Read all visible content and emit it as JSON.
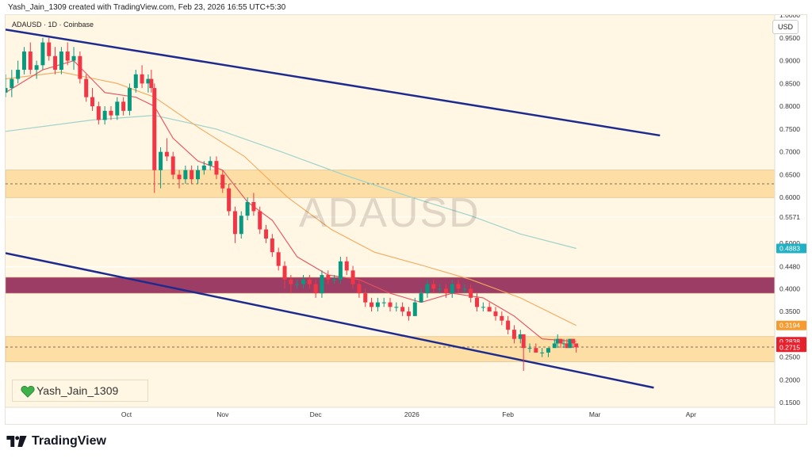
{
  "header": {
    "text": "Yash_Jain_1309 created with TradingView.com, Feb 23, 2026 16:55 UTC+5:30"
  },
  "symbol_title": "ADAUSD · 1D · Coinbase",
  "currency_button": "USD",
  "watermark": "ADAUSD",
  "author": "Yash_Jain_1309",
  "footer": {
    "brand": "TradingView"
  },
  "colors": {
    "background": "#fff6e3",
    "candle_up": "#089981",
    "candle_down": "#f23645",
    "ema_fast": "#e8505b",
    "ema_slow": "#f4a95a",
    "ma_long": "#9ed3cc",
    "channel": "#1d2b8e",
    "zone_light": "#fddfa6",
    "zone_dark": "#9c3d66"
  },
  "chart_data": {
    "type": "candlestick",
    "symbol": "ADAUSD",
    "timeframe": "1D",
    "exchange": "Coinbase",
    "x_range": [
      "2025-08-23",
      "2026-04-28"
    ],
    "y_range": [
      0.14,
      1.0
    ],
    "x_ticks": [
      {
        "label": "Oct",
        "date": "2025-10-01"
      },
      {
        "label": "Nov",
        "date": "2025-11-01"
      },
      {
        "label": "Dec",
        "date": "2025-12-01"
      },
      {
        "label": "2026",
        "date": "2026-01-01"
      },
      {
        "label": "Feb",
        "date": "2026-02-01"
      },
      {
        "label": "Mar",
        "date": "2026-03-01"
      },
      {
        "label": "Apr",
        "date": "2026-04-01"
      }
    ],
    "y_ticks": [
      {
        "label": "1.0000",
        "value": 1.0
      },
      {
        "label": "0.9500",
        "value": 0.95
      },
      {
        "label": "0.9000",
        "value": 0.9
      },
      {
        "label": "0.8500",
        "value": 0.85
      },
      {
        "label": "0.8000",
        "value": 0.8
      },
      {
        "label": "0.7500",
        "value": 0.75
      },
      {
        "label": "0.7000",
        "value": 0.7
      },
      {
        "label": "0.6500",
        "value": 0.65
      },
      {
        "label": "0.6000",
        "value": 0.6
      },
      {
        "label": "0.5571",
        "value": 0.5571
      },
      {
        "label": "0.5000",
        "value": 0.5
      },
      {
        "label": "0.4480",
        "value": 0.448
      },
      {
        "label": "0.4000",
        "value": 0.4
      },
      {
        "label": "0.3500",
        "value": 0.35
      },
      {
        "label": "0.2500",
        "value": 0.25
      },
      {
        "label": "0.2000",
        "value": 0.2
      },
      {
        "label": "0.1500",
        "value": 0.15
      }
    ],
    "price_labels": [
      {
        "label": "0.4883",
        "value": 0.4883,
        "color": "#22b0c4"
      },
      {
        "label": "0.3194",
        "value": 0.3194,
        "color": "#f59b2f"
      },
      {
        "label": "0.2838",
        "value": 0.2838,
        "color": "#e5212e"
      },
      {
        "label": "0.2715",
        "value": 0.2715,
        "color": "#e5212e"
      }
    ],
    "zones": [
      {
        "from": 0.6,
        "to": 0.66,
        "color": "#fddfa6",
        "midline": 0.63
      },
      {
        "from": 0.39,
        "to": 0.425,
        "color": "#9c3d66"
      },
      {
        "from": 0.24,
        "to": 0.295,
        "color": "#fddfa6",
        "midline": 0.272
      }
    ],
    "channel_lines": [
      {
        "from": {
          "date": "2025-08-23",
          "value": 0.968
        },
        "to": {
          "date": "2026-03-22",
          "value": 0.736
        }
      },
      {
        "from": {
          "date": "2025-08-23",
          "value": 0.478
        },
        "to": {
          "date": "2026-03-20",
          "value": 0.183
        }
      }
    ],
    "horizontal_lines": [
      {
        "value": 0.5571,
        "color": "#ffffff"
      },
      {
        "value": 0.448,
        "color": "#ffffff"
      }
    ],
    "candles": [
      {
        "date": "2025-08-23",
        "o": 0.83,
        "h": 0.87,
        "l": 0.82,
        "c": 0.84
      },
      {
        "date": "2025-08-25",
        "o": 0.84,
        "h": 0.88,
        "l": 0.82,
        "c": 0.86
      },
      {
        "date": "2025-08-27",
        "o": 0.86,
        "h": 0.9,
        "l": 0.85,
        "c": 0.88
      },
      {
        "date": "2025-08-29",
        "o": 0.88,
        "h": 0.93,
        "l": 0.87,
        "c": 0.92
      },
      {
        "date": "2025-08-31",
        "o": 0.92,
        "h": 0.94,
        "l": 0.87,
        "c": 0.88
      },
      {
        "date": "2025-09-02",
        "o": 0.88,
        "h": 0.9,
        "l": 0.86,
        "c": 0.89
      },
      {
        "date": "2025-09-04",
        "o": 0.89,
        "h": 0.95,
        "l": 0.88,
        "c": 0.94
      },
      {
        "date": "2025-09-06",
        "o": 0.94,
        "h": 0.95,
        "l": 0.9,
        "c": 0.91
      },
      {
        "date": "2025-09-08",
        "o": 0.91,
        "h": 0.93,
        "l": 0.87,
        "c": 0.88
      },
      {
        "date": "2025-09-10",
        "o": 0.88,
        "h": 0.93,
        "l": 0.87,
        "c": 0.92
      },
      {
        "date": "2025-09-12",
        "o": 0.92,
        "h": 0.94,
        "l": 0.89,
        "c": 0.9
      },
      {
        "date": "2025-09-14",
        "o": 0.9,
        "h": 0.93,
        "l": 0.88,
        "c": 0.91
      },
      {
        "date": "2025-09-16",
        "o": 0.91,
        "h": 0.92,
        "l": 0.85,
        "c": 0.86
      },
      {
        "date": "2025-09-18",
        "o": 0.86,
        "h": 0.87,
        "l": 0.81,
        "c": 0.82
      },
      {
        "date": "2025-09-20",
        "o": 0.82,
        "h": 0.84,
        "l": 0.79,
        "c": 0.8
      },
      {
        "date": "2025-09-22",
        "o": 0.8,
        "h": 0.81,
        "l": 0.76,
        "c": 0.77
      },
      {
        "date": "2025-09-24",
        "o": 0.77,
        "h": 0.8,
        "l": 0.76,
        "c": 0.79
      },
      {
        "date": "2025-09-26",
        "o": 0.79,
        "h": 0.8,
        "l": 0.77,
        "c": 0.78
      },
      {
        "date": "2025-09-28",
        "o": 0.78,
        "h": 0.82,
        "l": 0.77,
        "c": 0.81
      },
      {
        "date": "2025-09-30",
        "o": 0.81,
        "h": 0.82,
        "l": 0.78,
        "c": 0.79
      },
      {
        "date": "2025-10-02",
        "o": 0.79,
        "h": 0.85,
        "l": 0.78,
        "c": 0.84
      },
      {
        "date": "2025-10-04",
        "o": 0.84,
        "h": 0.88,
        "l": 0.83,
        "c": 0.87
      },
      {
        "date": "2025-10-06",
        "o": 0.87,
        "h": 0.89,
        "l": 0.84,
        "c": 0.85
      },
      {
        "date": "2025-10-08",
        "o": 0.85,
        "h": 0.87,
        "l": 0.83,
        "c": 0.86
      },
      {
        "date": "2025-10-09",
        "o": 0.86,
        "h": 0.88,
        "l": 0.83,
        "c": 0.84
      },
      {
        "date": "2025-10-10",
        "o": 0.84,
        "h": 0.85,
        "l": 0.61,
        "c": 0.66
      },
      {
        "date": "2025-10-12",
        "o": 0.66,
        "h": 0.71,
        "l": 0.62,
        "c": 0.7
      },
      {
        "date": "2025-10-14",
        "o": 0.7,
        "h": 0.73,
        "l": 0.68,
        "c": 0.69
      },
      {
        "date": "2025-10-16",
        "o": 0.69,
        "h": 0.7,
        "l": 0.64,
        "c": 0.65
      },
      {
        "date": "2025-10-18",
        "o": 0.65,
        "h": 0.66,
        "l": 0.62,
        "c": 0.64
      },
      {
        "date": "2025-10-20",
        "o": 0.64,
        "h": 0.67,
        "l": 0.63,
        "c": 0.66
      },
      {
        "date": "2025-10-22",
        "o": 0.66,
        "h": 0.67,
        "l": 0.63,
        "c": 0.64
      },
      {
        "date": "2025-10-24",
        "o": 0.64,
        "h": 0.67,
        "l": 0.63,
        "c": 0.66
      },
      {
        "date": "2025-10-26",
        "o": 0.66,
        "h": 0.68,
        "l": 0.65,
        "c": 0.67
      },
      {
        "date": "2025-10-28",
        "o": 0.67,
        "h": 0.69,
        "l": 0.66,
        "c": 0.68
      },
      {
        "date": "2025-10-30",
        "o": 0.68,
        "h": 0.69,
        "l": 0.64,
        "c": 0.65
      },
      {
        "date": "2025-11-01",
        "o": 0.65,
        "h": 0.66,
        "l": 0.61,
        "c": 0.62
      },
      {
        "date": "2025-11-03",
        "o": 0.62,
        "h": 0.63,
        "l": 0.56,
        "c": 0.57
      },
      {
        "date": "2025-11-05",
        "o": 0.57,
        "h": 0.58,
        "l": 0.5,
        "c": 0.52
      },
      {
        "date": "2025-11-07",
        "o": 0.52,
        "h": 0.57,
        "l": 0.51,
        "c": 0.56
      },
      {
        "date": "2025-11-09",
        "o": 0.56,
        "h": 0.6,
        "l": 0.55,
        "c": 0.59
      },
      {
        "date": "2025-11-11",
        "o": 0.59,
        "h": 0.61,
        "l": 0.56,
        "c": 0.57
      },
      {
        "date": "2025-11-13",
        "o": 0.57,
        "h": 0.58,
        "l": 0.52,
        "c": 0.53
      },
      {
        "date": "2025-11-15",
        "o": 0.53,
        "h": 0.54,
        "l": 0.5,
        "c": 0.51
      },
      {
        "date": "2025-11-17",
        "o": 0.51,
        "h": 0.52,
        "l": 0.47,
        "c": 0.48
      },
      {
        "date": "2025-11-19",
        "o": 0.48,
        "h": 0.49,
        "l": 0.44,
        "c": 0.45
      },
      {
        "date": "2025-11-21",
        "o": 0.45,
        "h": 0.46,
        "l": 0.4,
        "c": 0.42
      },
      {
        "date": "2025-11-23",
        "o": 0.42,
        "h": 0.43,
        "l": 0.39,
        "c": 0.41
      },
      {
        "date": "2025-11-25",
        "o": 0.41,
        "h": 0.42,
        "l": 0.4,
        "c": 0.41
      },
      {
        "date": "2025-11-27",
        "o": 0.41,
        "h": 0.43,
        "l": 0.4,
        "c": 0.42
      },
      {
        "date": "2025-11-29",
        "o": 0.42,
        "h": 0.43,
        "l": 0.4,
        "c": 0.41
      },
      {
        "date": "2025-12-01",
        "o": 0.41,
        "h": 0.42,
        "l": 0.38,
        "c": 0.39
      },
      {
        "date": "2025-12-03",
        "o": 0.39,
        "h": 0.44,
        "l": 0.38,
        "c": 0.43
      },
      {
        "date": "2025-12-05",
        "o": 0.43,
        "h": 0.44,
        "l": 0.41,
        "c": 0.42
      },
      {
        "date": "2025-12-07",
        "o": 0.42,
        "h": 0.43,
        "l": 0.41,
        "c": 0.42
      },
      {
        "date": "2025-12-09",
        "o": 0.42,
        "h": 0.47,
        "l": 0.41,
        "c": 0.46
      },
      {
        "date": "2025-12-11",
        "o": 0.46,
        "h": 0.47,
        "l": 0.43,
        "c": 0.44
      },
      {
        "date": "2025-12-13",
        "o": 0.44,
        "h": 0.45,
        "l": 0.4,
        "c": 0.41
      },
      {
        "date": "2025-12-15",
        "o": 0.41,
        "h": 0.42,
        "l": 0.38,
        "c": 0.39
      },
      {
        "date": "2025-12-17",
        "o": 0.39,
        "h": 0.4,
        "l": 0.36,
        "c": 0.37
      },
      {
        "date": "2025-12-19",
        "o": 0.37,
        "h": 0.38,
        "l": 0.35,
        "c": 0.36
      },
      {
        "date": "2025-12-21",
        "o": 0.36,
        "h": 0.38,
        "l": 0.35,
        "c": 0.37
      },
      {
        "date": "2025-12-23",
        "o": 0.37,
        "h": 0.38,
        "l": 0.36,
        "c": 0.37
      },
      {
        "date": "2025-12-25",
        "o": 0.37,
        "h": 0.38,
        "l": 0.35,
        "c": 0.36
      },
      {
        "date": "2025-12-27",
        "o": 0.36,
        "h": 0.37,
        "l": 0.35,
        "c": 0.36
      },
      {
        "date": "2025-12-29",
        "o": 0.36,
        "h": 0.37,
        "l": 0.34,
        "c": 0.35
      },
      {
        "date": "2025-12-31",
        "o": 0.35,
        "h": 0.36,
        "l": 0.33,
        "c": 0.34
      },
      {
        "date": "2026-01-02",
        "o": 0.34,
        "h": 0.38,
        "l": 0.34,
        "c": 0.37
      },
      {
        "date": "2026-01-04",
        "o": 0.37,
        "h": 0.4,
        "l": 0.37,
        "c": 0.39
      },
      {
        "date": "2026-01-06",
        "o": 0.39,
        "h": 0.42,
        "l": 0.38,
        "c": 0.41
      },
      {
        "date": "2026-01-08",
        "o": 0.41,
        "h": 0.42,
        "l": 0.39,
        "c": 0.4
      },
      {
        "date": "2026-01-10",
        "o": 0.4,
        "h": 0.41,
        "l": 0.39,
        "c": 0.4
      },
      {
        "date": "2026-01-12",
        "o": 0.4,
        "h": 0.41,
        "l": 0.38,
        "c": 0.39
      },
      {
        "date": "2026-01-14",
        "o": 0.39,
        "h": 0.42,
        "l": 0.38,
        "c": 0.41
      },
      {
        "date": "2026-01-16",
        "o": 0.41,
        "h": 0.42,
        "l": 0.39,
        "c": 0.4
      },
      {
        "date": "2026-01-18",
        "o": 0.4,
        "h": 0.41,
        "l": 0.39,
        "c": 0.4
      },
      {
        "date": "2026-01-20",
        "o": 0.4,
        "h": 0.41,
        "l": 0.37,
        "c": 0.38
      },
      {
        "date": "2026-01-22",
        "o": 0.38,
        "h": 0.39,
        "l": 0.35,
        "c": 0.36
      },
      {
        "date": "2026-01-24",
        "o": 0.36,
        "h": 0.37,
        "l": 0.35,
        "c": 0.36
      },
      {
        "date": "2026-01-26",
        "o": 0.36,
        "h": 0.37,
        "l": 0.35,
        "c": 0.35
      },
      {
        "date": "2026-01-28",
        "o": 0.35,
        "h": 0.36,
        "l": 0.33,
        "c": 0.34
      },
      {
        "date": "2026-01-30",
        "o": 0.34,
        "h": 0.35,
        "l": 0.32,
        "c": 0.33
      },
      {
        "date": "2026-02-01",
        "o": 0.33,
        "h": 0.34,
        "l": 0.3,
        "c": 0.31
      },
      {
        "date": "2026-02-03",
        "o": 0.31,
        "h": 0.32,
        "l": 0.28,
        "c": 0.29
      },
      {
        "date": "2026-02-05",
        "o": 0.29,
        "h": 0.31,
        "l": 0.28,
        "c": 0.3
      },
      {
        "date": "2026-02-06",
        "o": 0.3,
        "h": 0.3,
        "l": 0.22,
        "c": 0.27
      },
      {
        "date": "2026-02-08",
        "o": 0.27,
        "h": 0.28,
        "l": 0.26,
        "c": 0.27
      },
      {
        "date": "2026-02-10",
        "o": 0.27,
        "h": 0.28,
        "l": 0.26,
        "c": 0.26
      },
      {
        "date": "2026-02-12",
        "o": 0.26,
        "h": 0.27,
        "l": 0.25,
        "c": 0.26
      },
      {
        "date": "2026-02-14",
        "o": 0.26,
        "h": 0.27,
        "l": 0.25,
        "c": 0.27
      },
      {
        "date": "2026-02-16",
        "o": 0.27,
        "h": 0.29,
        "l": 0.27,
        "c": 0.28
      },
      {
        "date": "2026-02-17",
        "o": 0.28,
        "h": 0.3,
        "l": 0.27,
        "c": 0.29
      },
      {
        "date": "2026-02-18",
        "o": 0.29,
        "h": 0.29,
        "l": 0.27,
        "c": 0.28
      },
      {
        "date": "2026-02-19",
        "o": 0.28,
        "h": 0.29,
        "l": 0.27,
        "c": 0.28
      },
      {
        "date": "2026-02-20",
        "o": 0.28,
        "h": 0.29,
        "l": 0.27,
        "c": 0.27
      },
      {
        "date": "2026-02-21",
        "o": 0.27,
        "h": 0.29,
        "l": 0.27,
        "c": 0.29
      },
      {
        "date": "2026-02-22",
        "o": 0.29,
        "h": 0.29,
        "l": 0.27,
        "c": 0.28
      },
      {
        "date": "2026-02-23",
        "o": 0.28,
        "h": 0.28,
        "l": 0.26,
        "c": 0.2715
      }
    ],
    "ema_fast": [
      {
        "date": "2025-08-23",
        "value": 0.83
      },
      {
        "date": "2025-09-04",
        "value": 0.88
      },
      {
        "date": "2025-09-14",
        "value": 0.9
      },
      {
        "date": "2025-09-24",
        "value": 0.83
      },
      {
        "date": "2025-10-04",
        "value": 0.82
      },
      {
        "date": "2025-10-10",
        "value": 0.8
      },
      {
        "date": "2025-10-16",
        "value": 0.73
      },
      {
        "date": "2025-10-24",
        "value": 0.68
      },
      {
        "date": "2025-11-01",
        "value": 0.66
      },
      {
        "date": "2025-11-09",
        "value": 0.59
      },
      {
        "date": "2025-11-17",
        "value": 0.55
      },
      {
        "date": "2025-11-25",
        "value": 0.47
      },
      {
        "date": "2025-12-05",
        "value": 0.43
      },
      {
        "date": "2025-12-15",
        "value": 0.42
      },
      {
        "date": "2025-12-25",
        "value": 0.39
      },
      {
        "date": "2026-01-04",
        "value": 0.37
      },
      {
        "date": "2026-01-14",
        "value": 0.39
      },
      {
        "date": "2026-01-24",
        "value": 0.38
      },
      {
        "date": "2026-02-03",
        "value": 0.34
      },
      {
        "date": "2026-02-12",
        "value": 0.29
      },
      {
        "date": "2026-02-23",
        "value": 0.284
      }
    ],
    "ema_slow": [
      {
        "date": "2025-08-23",
        "value": 0.86
      },
      {
        "date": "2025-09-10",
        "value": 0.875
      },
      {
        "date": "2025-09-28",
        "value": 0.85
      },
      {
        "date": "2025-10-10",
        "value": 0.82
      },
      {
        "date": "2025-10-25",
        "value": 0.75
      },
      {
        "date": "2025-11-08",
        "value": 0.69
      },
      {
        "date": "2025-11-22",
        "value": 0.6
      },
      {
        "date": "2025-12-06",
        "value": 0.53
      },
      {
        "date": "2025-12-20",
        "value": 0.48
      },
      {
        "date": "2026-01-05",
        "value": 0.45
      },
      {
        "date": "2026-01-20",
        "value": 0.42
      },
      {
        "date": "2026-02-05",
        "value": 0.38
      },
      {
        "date": "2026-02-23",
        "value": 0.3194
      }
    ],
    "ma_long": [
      {
        "date": "2025-08-23",
        "value": 0.745
      },
      {
        "date": "2025-09-20",
        "value": 0.77
      },
      {
        "date": "2025-10-10",
        "value": 0.78
      },
      {
        "date": "2025-10-30",
        "value": 0.75
      },
      {
        "date": "2025-11-20",
        "value": 0.7
      },
      {
        "date": "2025-12-10",
        "value": 0.65
      },
      {
        "date": "2026-01-01",
        "value": 0.6
      },
      {
        "date": "2026-01-20",
        "value": 0.56
      },
      {
        "date": "2026-02-05",
        "value": 0.52
      },
      {
        "date": "2026-02-23",
        "value": 0.4883
      }
    ]
  }
}
